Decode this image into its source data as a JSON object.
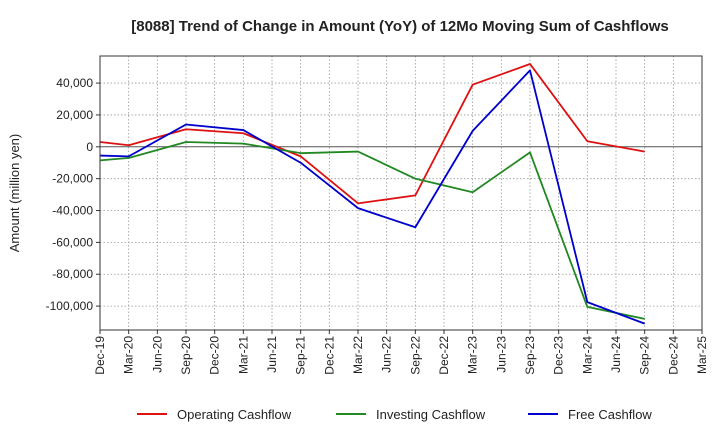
{
  "chart_data": {
    "type": "line",
    "title": "[8088]  Trend of Change in Amount (YoY) of 12Mo Moving Sum of Cashflows",
    "xlabel": "",
    "ylabel": "Amount (million yen)",
    "ylim": [
      -115000,
      57000
    ],
    "yticks": [
      40000,
      20000,
      0,
      -20000,
      -40000,
      -60000,
      -80000,
      -100000
    ],
    "ytick_labels": [
      "40,000",
      "20,000",
      "0",
      "-20,000",
      "-40,000",
      "-60,000",
      "-80,000",
      "-100,000"
    ],
    "categories": [
      "Dec-19",
      "Mar-20",
      "Jun-20",
      "Sep-20",
      "Dec-20",
      "Mar-21",
      "Jun-21",
      "Sep-21",
      "Dec-21",
      "Mar-22",
      "Jun-22",
      "Sep-22",
      "Dec-22",
      "Mar-23",
      "Jun-23",
      "Sep-23",
      "Dec-23",
      "Mar-24",
      "Jun-24",
      "Sep-24",
      "Dec-24",
      "Mar-25"
    ],
    "grid": true,
    "legend_position": "bottom",
    "series": [
      {
        "name": "Operating Cashflow",
        "color": "#dd1111",
        "values": [
          3000,
          1000,
          null,
          11000,
          null,
          8500,
          null,
          -6000,
          null,
          -35500,
          null,
          -30500,
          null,
          39000,
          null,
          52000,
          null,
          3500,
          null,
          -3000,
          null,
          null
        ]
      },
      {
        "name": "Investing Cashflow",
        "color": "#228822",
        "values": [
          -8500,
          -7000,
          null,
          3000,
          null,
          2000,
          null,
          -4000,
          null,
          -3000,
          null,
          -20000,
          null,
          -28500,
          null,
          -3500,
          null,
          -100500,
          null,
          -108000,
          null,
          null
        ]
      },
      {
        "name": "Free Cashflow",
        "color": "#0000cc",
        "values": [
          -5500,
          -6000,
          null,
          14000,
          null,
          10500,
          null,
          -10000,
          null,
          -38500,
          null,
          -50500,
          null,
          10000,
          null,
          48000,
          null,
          -97500,
          null,
          -111000,
          null,
          null
        ]
      }
    ]
  }
}
